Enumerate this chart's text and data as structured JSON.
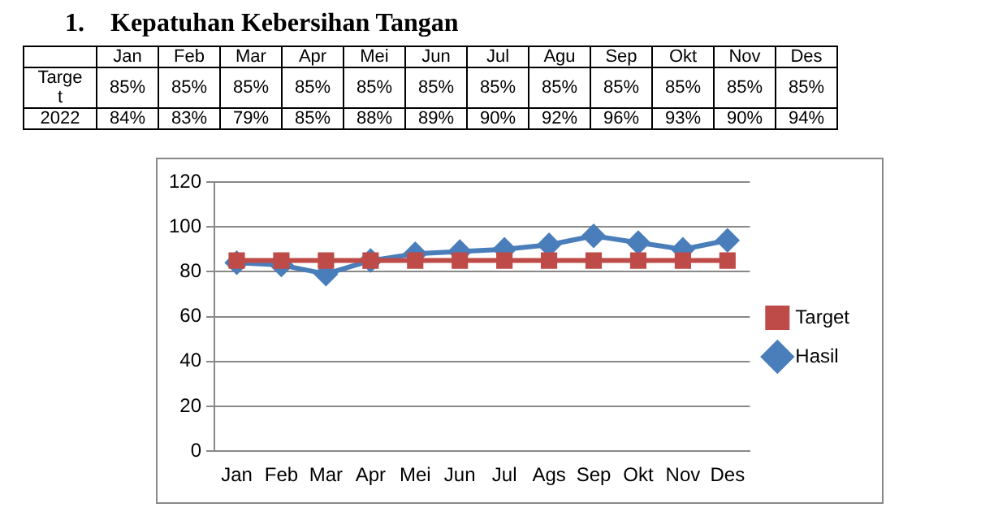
{
  "chart_data": [
    {
      "type": "heatmap",
      "title": "1.    Kepatuhan Kebersihan Tangan",
      "categories": [
        "Jan",
        "Feb",
        "Mar",
        "Apr",
        "Mei",
        "Jun",
        "Jul",
        "Agu",
        "Sep",
        "Okt",
        "Nov",
        "Des"
      ],
      "y_categories": [
        "Target",
        "2022"
      ],
      "cells": [
        [
          85,
          85,
          85,
          85,
          85,
          85,
          85,
          85,
          85,
          85,
          85,
          85
        ],
        [
          84,
          83,
          79,
          85,
          88,
          89,
          90,
          92,
          96,
          93,
          90,
          94
        ]
      ],
      "cell_labels": [
        [
          "85%",
          "85%",
          "85%",
          "85%",
          "85%",
          "85%",
          "85%",
          "85%",
          "85%",
          "85%",
          "85%",
          "85%"
        ],
        [
          "84%",
          "83%",
          "79%",
          "85%",
          "88%",
          "89%",
          "90%",
          "92%",
          "96%",
          "93%",
          "90%",
          "94%"
        ]
      ]
    },
    {
      "type": "line",
      "categories": [
        "Jan",
        "Feb",
        "Mar",
        "Apr",
        "Mei",
        "Jun",
        "Jul",
        "Ags",
        "Sep",
        "Okt",
        "Nov",
        "Des"
      ],
      "series": [
        {
          "name": "Hasil",
          "color": "#4a7ebb",
          "marker": "diamond",
          "values": [
            84,
            83,
            79,
            85,
            88,
            89,
            90,
            92,
            96,
            93,
            90,
            94
          ]
        },
        {
          "name": "Target",
          "color": "#be4b48",
          "marker": "square",
          "values": [
            85,
            85,
            85,
            85,
            85,
            85,
            85,
            85,
            85,
            85,
            85,
            85
          ]
        }
      ],
      "ylim": [
        0,
        120
      ],
      "yticks": [
        0,
        20,
        40,
        60,
        80,
        100,
        120
      ],
      "grid": "y",
      "legend": "right"
    }
  ]
}
